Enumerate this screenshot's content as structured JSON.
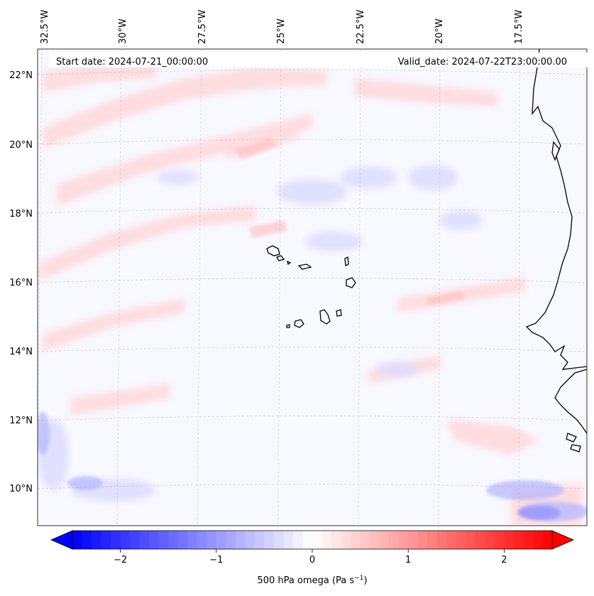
{
  "map": {
    "start_label": "Start date: 2024-07-21_00:00:00",
    "valid_label": "Valid_date: 2024-07-22T23:00:00.00",
    "lon_labels": [
      "32.5°W",
      "30°W",
      "27.5°W",
      "25°W",
      "22.5°W",
      "20°W",
      "17.5°W"
    ],
    "lat_labels": [
      "22°N",
      "20°N",
      "18°N",
      "16°N",
      "14°N",
      "12°N",
      "10°N"
    ]
  },
  "colorbar": {
    "label": "500 hPa omega (Pa s",
    "label_sup": "−1",
    "label_end": ")",
    "tick_labels": [
      "−2",
      "−1",
      "0",
      "1",
      "2"
    ],
    "tick_values": [
      -2,
      -1,
      0,
      1,
      2
    ],
    "vmin": -2.5,
    "vmax": 2.5,
    "colors": {
      "negative": "#0000ff",
      "zero": "#ffffff",
      "positive": "#ff0000"
    }
  }
}
